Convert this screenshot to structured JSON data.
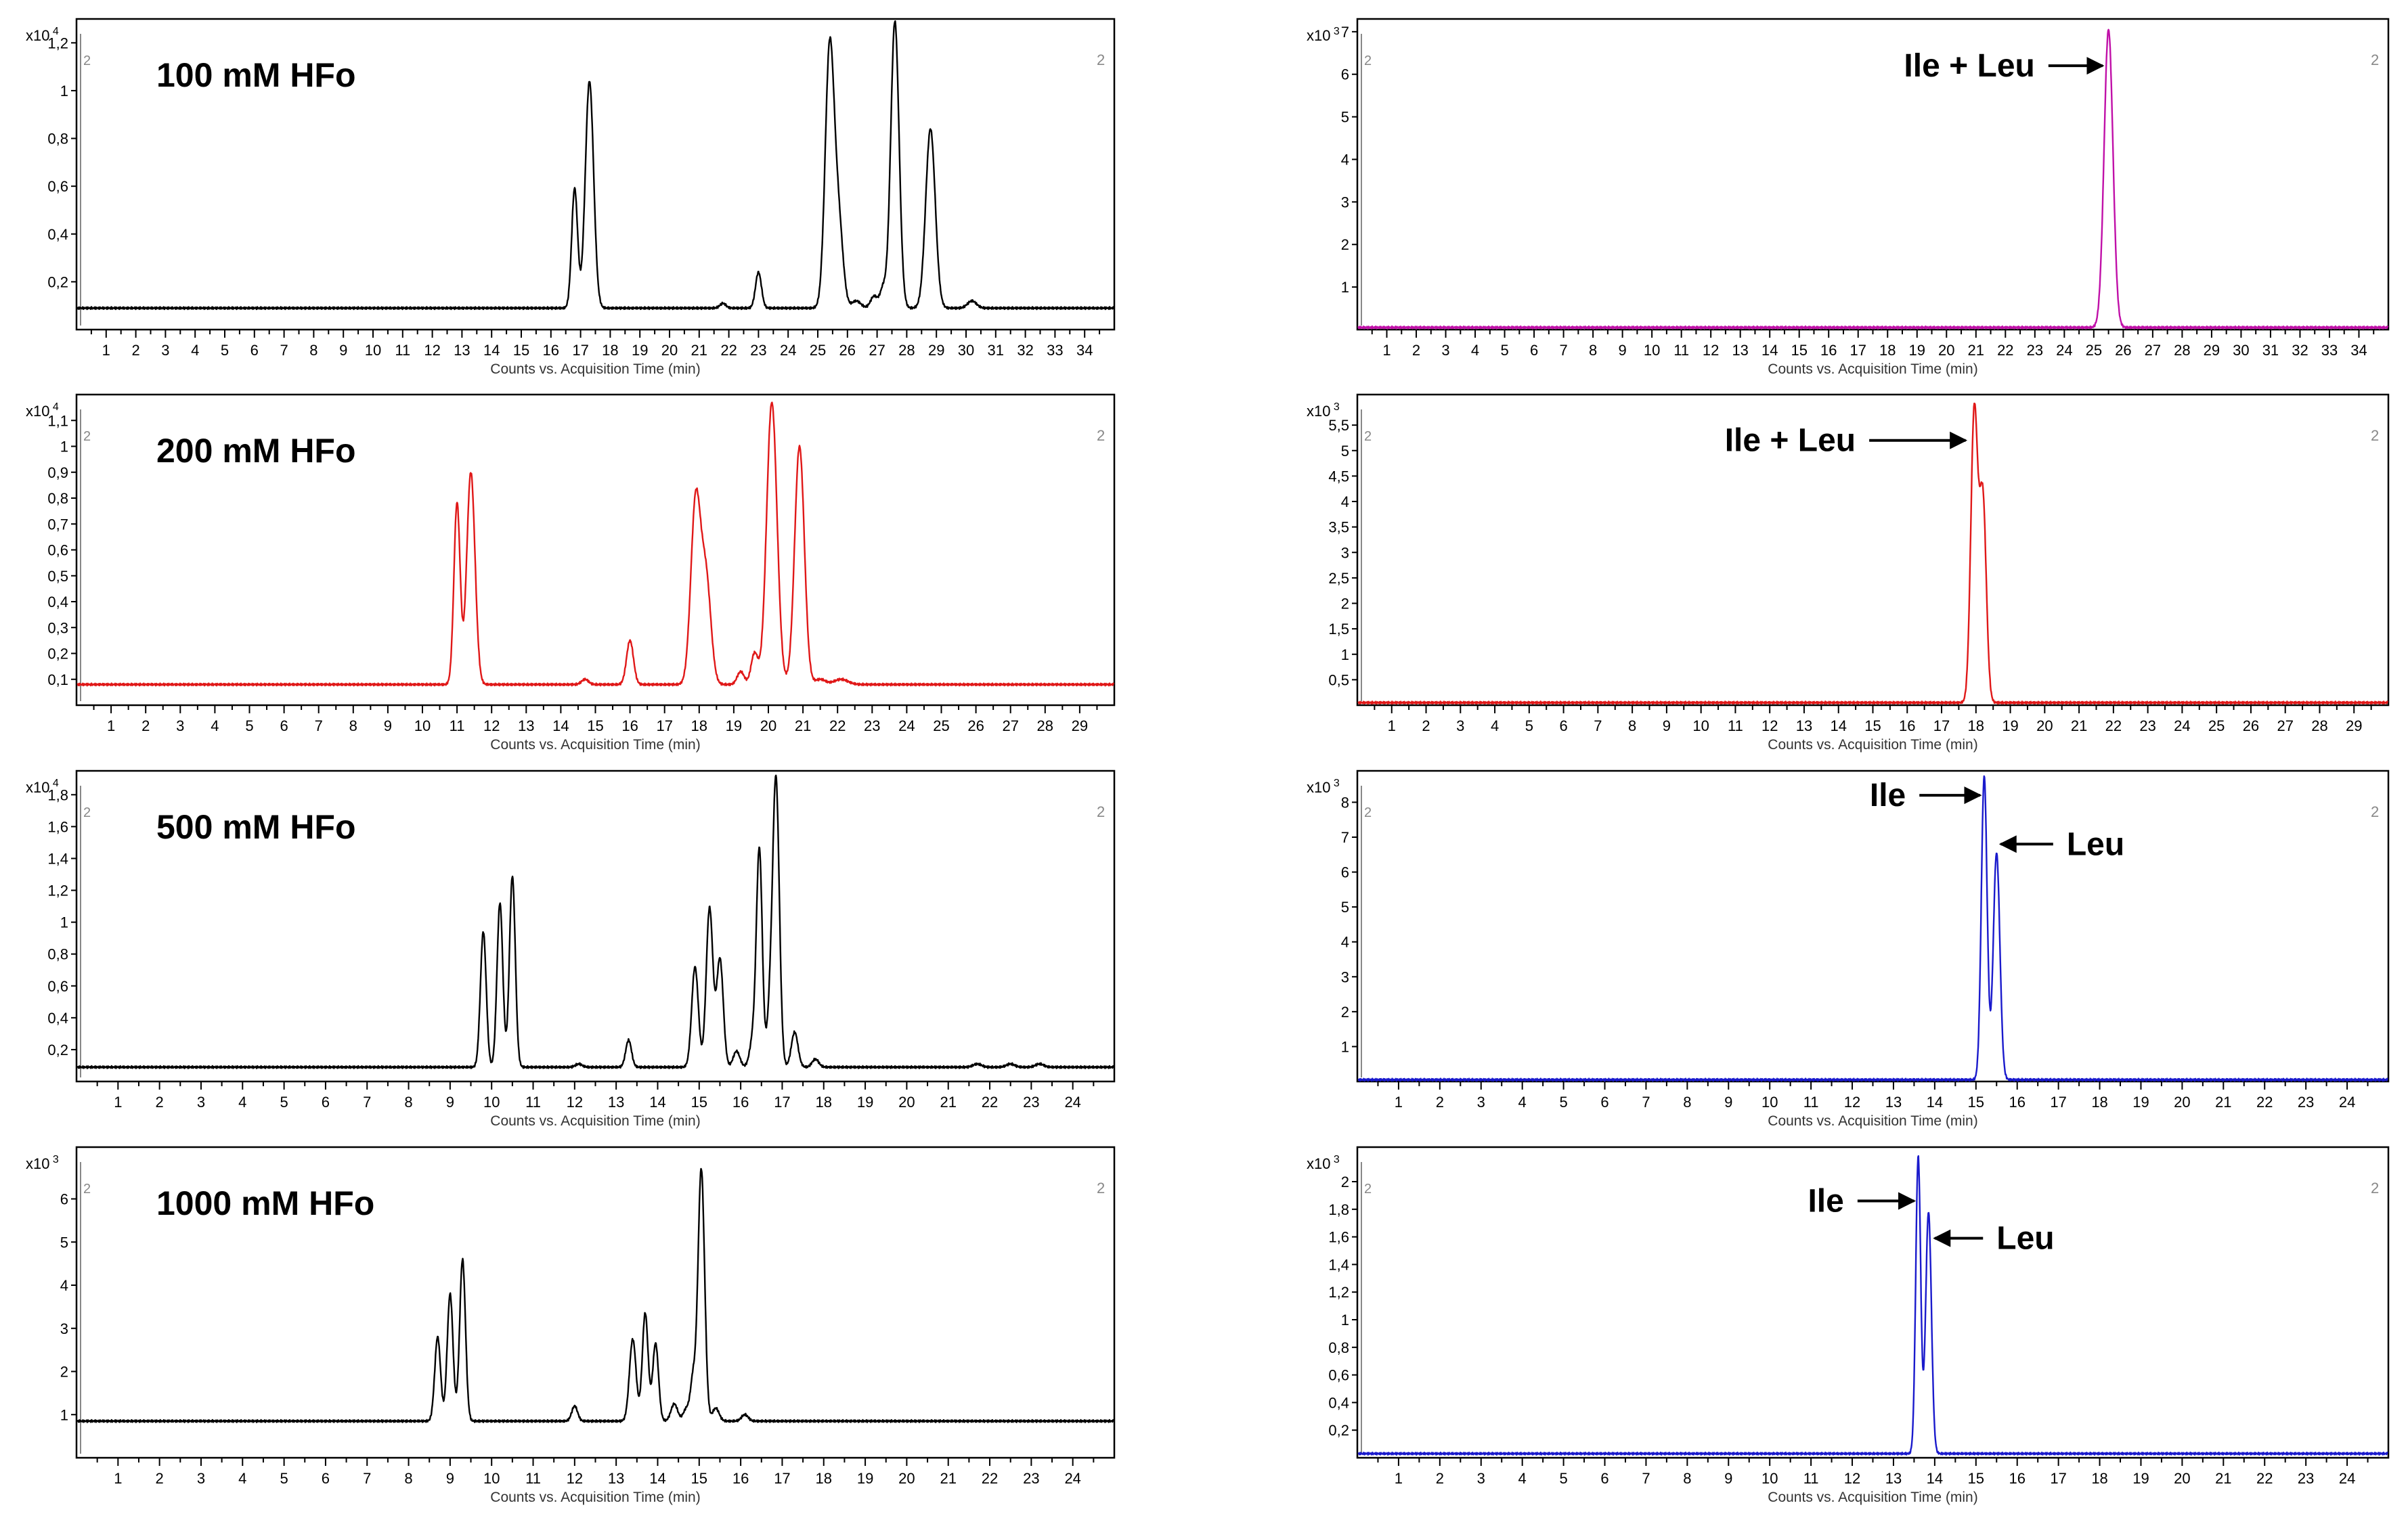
{
  "common": {
    "xlabel": "Counts vs. Acquisition Time (min)",
    "left_marker": "2",
    "right_marker": "2"
  },
  "chart_data": [
    {
      "id": "p100",
      "type": "line",
      "title": "100 mM HFo",
      "color": "#000000",
      "multiplier": "x10",
      "exponent": "4",
      "xlim": [
        0,
        35
      ],
      "xticks": [
        1,
        2,
        3,
        4,
        5,
        6,
        7,
        8,
        9,
        10,
        11,
        12,
        13,
        14,
        15,
        16,
        17,
        18,
        19,
        20,
        21,
        22,
        23,
        24,
        25,
        26,
        27,
        28,
        29,
        30,
        31,
        32,
        33,
        34
      ],
      "ylim": [
        0,
        1.3
      ],
      "yticks": [
        "0,2",
        "0,4",
        "0,6",
        "0,8",
        "1",
        "1,2"
      ],
      "ytick_values": [
        0.2,
        0.4,
        0.6,
        0.8,
        1.0,
        1.2
      ],
      "baseline": 0.09,
      "peaks": [
        [
          16.8,
          0.5,
          0.1
        ],
        [
          17.3,
          0.95,
          0.14
        ],
        [
          21.8,
          0.02,
          0.1
        ],
        [
          23.0,
          0.15,
          0.1
        ],
        [
          25.4,
          1.08,
          0.15
        ],
        [
          25.7,
          0.35,
          0.15
        ],
        [
          26.3,
          0.03,
          0.15
        ],
        [
          26.9,
          0.05,
          0.12
        ],
        [
          27.2,
          0.08,
          0.1
        ],
        [
          27.6,
          1.2,
          0.14
        ],
        [
          28.8,
          0.75,
          0.16
        ],
        [
          30.2,
          0.03,
          0.15
        ]
      ],
      "annotations": []
    },
    {
      "id": "p100r",
      "type": "line",
      "title": "",
      "color": "#c010a8",
      "multiplier": "x10",
      "exponent": "3",
      "xlim": [
        0,
        35
      ],
      "xticks": [
        1,
        2,
        3,
        4,
        5,
        6,
        7,
        8,
        9,
        10,
        11,
        12,
        13,
        14,
        15,
        16,
        17,
        18,
        19,
        20,
        21,
        22,
        23,
        24,
        25,
        26,
        27,
        28,
        29,
        30,
        31,
        32,
        33,
        34
      ],
      "ylim": [
        0,
        7.3
      ],
      "yticks": [
        "1",
        "2",
        "3",
        "4",
        "5",
        "6",
        "7"
      ],
      "ytick_values": [
        1,
        2,
        3,
        4,
        5,
        6,
        7
      ],
      "baseline": 0.05,
      "peaks": [
        [
          25.5,
          7.0,
          0.15
        ]
      ],
      "annotations": [
        {
          "text": "Ile + Leu",
          "x": 23.0,
          "y": 6.2,
          "ax": 25.3,
          "ay": 6.2
        }
      ]
    },
    {
      "id": "p200",
      "type": "line",
      "title": "200 mM HFo",
      "color": "#e01818",
      "multiplier": "x10",
      "exponent": "4",
      "xlim": [
        0,
        30
      ],
      "xticks": [
        1,
        2,
        3,
        4,
        5,
        6,
        7,
        8,
        9,
        10,
        11,
        12,
        13,
        14,
        15,
        16,
        17,
        18,
        19,
        20,
        21,
        22,
        23,
        24,
        25,
        26,
        27,
        28,
        29
      ],
      "ylim": [
        0,
        1.2
      ],
      "yticks": [
        "0,1",
        "0,2",
        "0,3",
        "0,4",
        "0,5",
        "0,6",
        "0,7",
        "0,8",
        "0,9",
        "1",
        "1,1"
      ],
      "ytick_values": [
        0.1,
        0.2,
        0.3,
        0.4,
        0.5,
        0.6,
        0.7,
        0.8,
        0.9,
        1.0,
        1.1
      ],
      "baseline": 0.08,
      "peaks": [
        [
          11.0,
          0.7,
          0.09
        ],
        [
          11.4,
          0.82,
          0.12
        ],
        [
          14.7,
          0.02,
          0.1
        ],
        [
          16.0,
          0.17,
          0.1
        ],
        [
          17.9,
          0.71,
          0.14
        ],
        [
          18.2,
          0.4,
          0.14
        ],
        [
          19.2,
          0.05,
          0.1
        ],
        [
          19.6,
          0.12,
          0.1
        ],
        [
          20.1,
          1.09,
          0.15
        ],
        [
          20.9,
          0.92,
          0.14
        ],
        [
          21.5,
          0.02,
          0.15
        ],
        [
          22.1,
          0.02,
          0.2
        ]
      ],
      "annotations": []
    },
    {
      "id": "p200r",
      "type": "line",
      "title": "",
      "color": "#e01818",
      "multiplier": "x10",
      "exponent": "3",
      "xlim": [
        0,
        30
      ],
      "xticks": [
        1,
        2,
        3,
        4,
        5,
        6,
        7,
        8,
        9,
        10,
        11,
        12,
        13,
        14,
        15,
        16,
        17,
        18,
        19,
        20,
        21,
        22,
        23,
        24,
        25,
        26,
        27,
        28,
        29
      ],
      "ylim": [
        0,
        6.1
      ],
      "yticks": [
        "0,5",
        "1",
        "1,5",
        "2",
        "2,5",
        "3",
        "3,5",
        "4",
        "4,5",
        "5",
        "5,5"
      ],
      "ytick_values": [
        0.5,
        1,
        1.5,
        2,
        2.5,
        3,
        3.5,
        4,
        4.5,
        5,
        5.5
      ],
      "baseline": 0.05,
      "peaks": [
        [
          17.95,
          5.7,
          0.1
        ],
        [
          18.2,
          4.0,
          0.1
        ]
      ],
      "annotations": [
        {
          "text": "Ile + Leu",
          "x": 14.5,
          "y": 5.2,
          "ax": 17.7,
          "ay": 5.2
        }
      ]
    },
    {
      "id": "p500",
      "type": "line",
      "title": "500 mM HFo",
      "color": "#000000",
      "multiplier": "x10",
      "exponent": "4",
      "xlim": [
        0,
        25
      ],
      "xticks": [
        1,
        2,
        3,
        4,
        5,
        6,
        7,
        8,
        9,
        10,
        11,
        12,
        13,
        14,
        15,
        16,
        17,
        18,
        19,
        20,
        21,
        22,
        23,
        24
      ],
      "ylim": [
        0,
        1.95
      ],
      "yticks": [
        "0,2",
        "0,4",
        "0,6",
        "0,8",
        "1",
        "1,2",
        "1,4",
        "1,6",
        "1,8"
      ],
      "ytick_values": [
        0.2,
        0.4,
        0.6,
        0.8,
        1.0,
        1.2,
        1.4,
        1.6,
        1.8
      ],
      "baseline": 0.09,
      "peaks": [
        [
          9.8,
          0.85,
          0.07
        ],
        [
          10.2,
          1.03,
          0.07
        ],
        [
          10.5,
          1.2,
          0.07
        ],
        [
          12.1,
          0.02,
          0.08
        ],
        [
          13.3,
          0.17,
          0.07
        ],
        [
          14.9,
          0.63,
          0.08
        ],
        [
          15.25,
          1.0,
          0.08
        ],
        [
          15.5,
          0.68,
          0.08
        ],
        [
          15.9,
          0.1,
          0.08
        ],
        [
          16.3,
          0.18,
          0.08
        ],
        [
          16.45,
          1.35,
          0.07
        ],
        [
          16.7,
          0.3,
          0.07
        ],
        [
          16.85,
          1.8,
          0.08
        ],
        [
          17.3,
          0.22,
          0.08
        ],
        [
          17.8,
          0.05,
          0.08
        ],
        [
          21.7,
          0.02,
          0.1
        ],
        [
          22.5,
          0.02,
          0.1
        ],
        [
          23.2,
          0.02,
          0.1
        ]
      ],
      "annotations": []
    },
    {
      "id": "p500r",
      "type": "line",
      "title": "",
      "color": "#1a1acc",
      "multiplier": "x10",
      "exponent": "3",
      "xlim": [
        0,
        25
      ],
      "xticks": [
        1,
        2,
        3,
        4,
        5,
        6,
        7,
        8,
        9,
        10,
        11,
        12,
        13,
        14,
        15,
        16,
        17,
        18,
        19,
        20,
        21,
        22,
        23,
        24
      ],
      "ylim": [
        0,
        8.9
      ],
      "yticks": [
        "1",
        "2",
        "3",
        "4",
        "5",
        "6",
        "7",
        "8"
      ],
      "ytick_values": [
        1,
        2,
        3,
        4,
        5,
        6,
        7,
        8
      ],
      "baseline": 0.05,
      "peaks": [
        [
          15.2,
          8.7,
          0.07
        ],
        [
          15.5,
          6.5,
          0.08
        ]
      ],
      "annotations": [
        {
          "text": "Ile",
          "x": 13.3,
          "y": 8.2,
          "ax": 15.1,
          "ay": 8.2
        },
        {
          "text": "Leu",
          "x": 17.2,
          "y": 6.8,
          "ax": 15.6,
          "ay": 6.8
        }
      ]
    },
    {
      "id": "p1000",
      "type": "line",
      "title": "1000 mM HFo",
      "color": "#000000",
      "multiplier": "x10",
      "exponent": "3",
      "xlim": [
        0,
        25
      ],
      "xticks": [
        1,
        2,
        3,
        4,
        5,
        6,
        7,
        8,
        9,
        10,
        11,
        12,
        13,
        14,
        15,
        16,
        17,
        18,
        19,
        20,
        21,
        22,
        23,
        24
      ],
      "ylim": [
        0,
        7.2
      ],
      "yticks": [
        "1",
        "2",
        "3",
        "4",
        "5",
        "6"
      ],
      "ytick_values": [
        1,
        2,
        3,
        4,
        5,
        6
      ],
      "baseline": 0.85,
      "peaks": [
        [
          8.7,
          1.95,
          0.07
        ],
        [
          9.0,
          2.95,
          0.07
        ],
        [
          9.3,
          3.75,
          0.07
        ],
        [
          12.0,
          0.35,
          0.07
        ],
        [
          13.4,
          1.9,
          0.08
        ],
        [
          13.7,
          2.5,
          0.07
        ],
        [
          13.95,
          1.8,
          0.07
        ],
        [
          14.4,
          0.4,
          0.08
        ],
        [
          14.7,
          0.3,
          0.08
        ],
        [
          14.85,
          0.9,
          0.06
        ],
        [
          15.05,
          5.85,
          0.08
        ],
        [
          15.4,
          0.3,
          0.08
        ],
        [
          16.1,
          0.15,
          0.08
        ]
      ],
      "annotations": []
    },
    {
      "id": "p1000r",
      "type": "line",
      "title": "",
      "color": "#1a1acc",
      "multiplier": "x10",
      "exponent": "3",
      "xlim": [
        0,
        25
      ],
      "xticks": [
        1,
        2,
        3,
        4,
        5,
        6,
        7,
        8,
        9,
        10,
        11,
        12,
        13,
        14,
        15,
        16,
        17,
        18,
        19,
        20,
        21,
        22,
        23,
        24
      ],
      "ylim": [
        0,
        2.25
      ],
      "yticks": [
        "0,2",
        "0,4",
        "0,6",
        "0,8",
        "1",
        "1,2",
        "1,4",
        "1,6",
        "1,8",
        "2"
      ],
      "ytick_values": [
        0.2,
        0.4,
        0.6,
        0.8,
        1.0,
        1.2,
        1.4,
        1.6,
        1.8,
        2.0
      ],
      "baseline": 0.03,
      "peaks": [
        [
          13.6,
          2.15,
          0.06
        ],
        [
          13.85,
          1.75,
          0.07
        ]
      ],
      "annotations": [
        {
          "text": "Ile",
          "x": 11.8,
          "y": 1.86,
          "ax": 13.5,
          "ay": 1.86
        },
        {
          "text": "Leu",
          "x": 15.5,
          "y": 1.59,
          "ax": 14.0,
          "ay": 1.59
        }
      ]
    }
  ]
}
